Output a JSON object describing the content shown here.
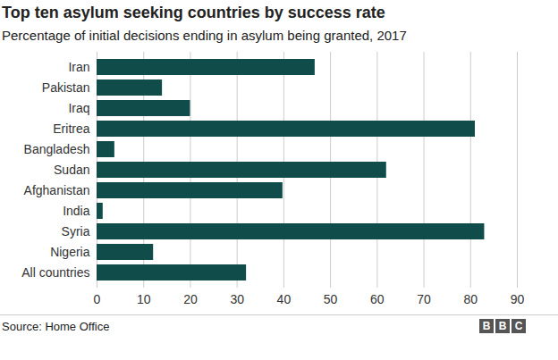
{
  "chart_data": {
    "type": "bar",
    "orientation": "horizontal",
    "title": "Top ten asylum seeking countries by success rate",
    "subtitle": "Percentage of initial decisions ending in asylum being granted, 2017",
    "categories": [
      "Iran",
      "Pakistan",
      "Iraq",
      "Eritrea",
      "Bangladesh",
      "Sudan",
      "Afghanistan",
      "India",
      "Syria",
      "Nigeria",
      "All countries"
    ],
    "values": [
      46.7,
      14,
      20,
      81,
      3.8,
      62,
      39.8,
      1.3,
      83,
      12.1,
      32
    ],
    "color": "#0f4c4a",
    "xlim": [
      0,
      90
    ],
    "xticks": [
      0,
      10,
      20,
      30,
      40,
      50,
      60,
      70,
      80,
      90
    ],
    "grid": true,
    "source": "Source: Home Office",
    "logo": "BBC"
  }
}
